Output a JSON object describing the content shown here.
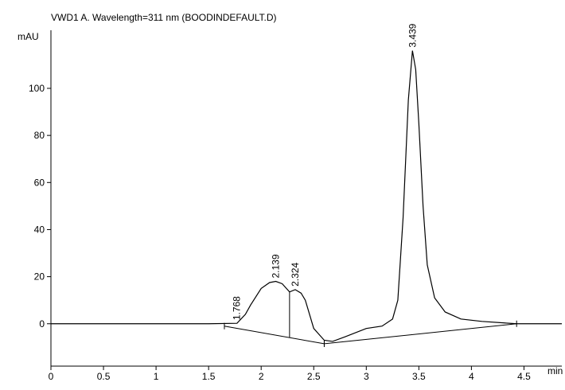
{
  "chart_data": {
    "type": "line",
    "title": "VWD1 A. Wavelength=311 nm (BOODINDEFAULT.D)",
    "y_label": "mAU",
    "x_label": "min",
    "xlim": [
      0,
      4.86
    ],
    "ylim": [
      -18,
      124
    ],
    "xticks": [
      0,
      0.5,
      1,
      1.5,
      2,
      2.5,
      3,
      3.5,
      4,
      4.5
    ],
    "yticks": [
      0,
      20,
      40,
      60,
      80,
      100
    ],
    "series": [
      {
        "color": "#000000",
        "x": [
          0,
          1.5,
          1.77,
          1.85,
          1.9,
          2.0,
          2.08,
          2.139,
          2.2,
          2.24,
          2.27,
          2.324,
          2.38,
          2.42,
          2.46,
          2.5,
          2.6,
          2.68,
          2.8,
          3.0,
          3.15,
          3.25,
          3.3,
          3.35,
          3.4,
          3.439,
          3.47,
          3.5,
          3.54,
          3.58,
          3.65,
          3.75,
          3.9,
          4.1,
          4.43,
          4.86
        ],
        "y": [
          0,
          0,
          0.2,
          4,
          8,
          15,
          17.5,
          18,
          17,
          15,
          13.5,
          14.5,
          13,
          10,
          4,
          -2,
          -7,
          -7.5,
          -5.5,
          -2,
          -1,
          2,
          10,
          45,
          95,
          116,
          108,
          85,
          50,
          25,
          11,
          5,
          2,
          1,
          0,
          0
        ]
      }
    ],
    "peaks": [
      1.768,
      2.139,
      2.324,
      3.439
    ],
    "baselines": [
      {
        "x": [
          1.65,
          2.6
        ],
        "y": [
          -1,
          -8.5
        ]
      },
      {
        "x": [
          2.6,
          4.43
        ],
        "y": [
          -8.5,
          0
        ]
      }
    ],
    "drop_lines": [
      2.27
    ]
  }
}
